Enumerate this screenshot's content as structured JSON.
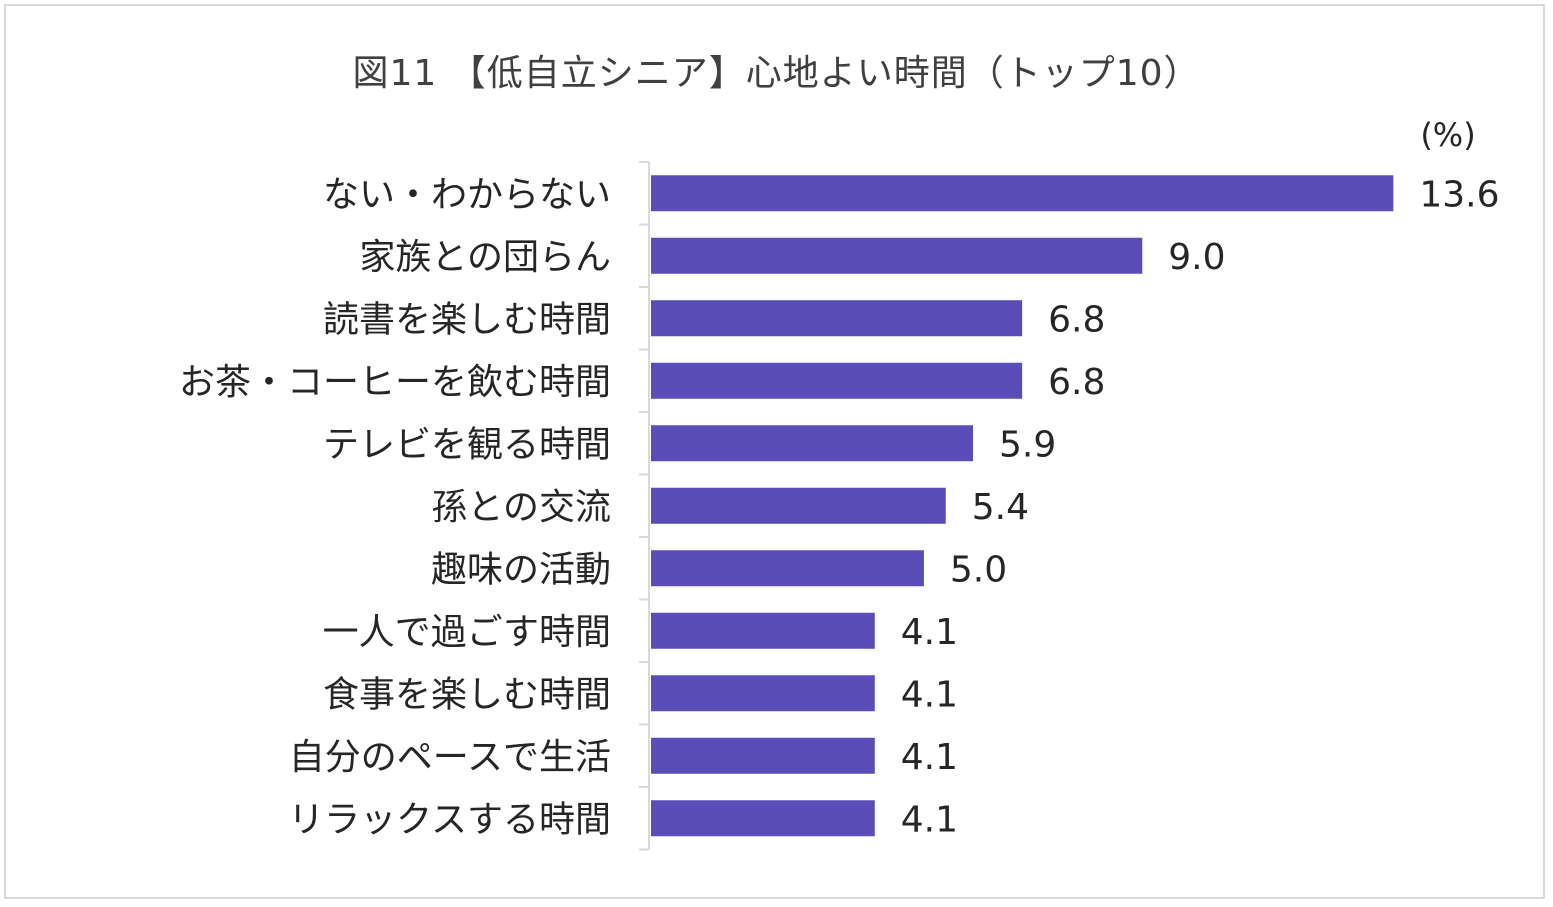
{
  "chart_data": {
    "type": "bar",
    "orientation": "horizontal",
    "title": "図11 【低自立シニア】心地よい時間（トップ10）",
    "unit_label": "(%)",
    "categories": [
      "ない・わからない",
      "家族との団らん",
      "読書を楽しむ時間",
      "お茶・コーヒーを飲む時間",
      "テレビを観る時間",
      "孫との交流",
      "趣味の活動",
      "一人で過ごす時間",
      "食事を楽しむ時間",
      "自分のペースで生活",
      "リラックスする時間"
    ],
    "values": [
      13.6,
      9.0,
      6.8,
      6.8,
      5.9,
      5.4,
      5.0,
      4.1,
      4.1,
      4.1,
      4.1
    ],
    "value_labels": [
      "13.6",
      "9.0",
      "6.8",
      "6.8",
      "5.9",
      "5.4",
      "5.0",
      "4.1",
      "4.1",
      "4.1",
      "4.1"
    ],
    "xlim": [
      0,
      14.4
    ],
    "bar_color": "#5b4db7",
    "axis_color": "#d9d9d9",
    "grid": false,
    "legend": "none"
  }
}
